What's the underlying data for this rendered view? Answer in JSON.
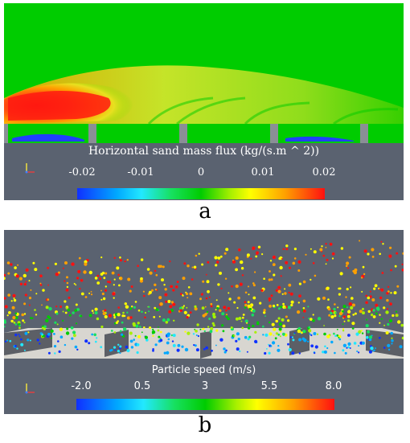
{
  "panel_a": {
    "label": "a",
    "colorbar_title": "Horizontal sand mass flux (kg/(s.m ^ 2))",
    "ticks": [
      "-0.02",
      "-0.01",
      "0",
      "0.01",
      "0.02"
    ],
    "colormap": [
      "#1030ff",
      "#00a8ff",
      "#22e8ff",
      "#17e060",
      "#00cc00",
      "#a8f000",
      "#ffff00",
      "#ffa000",
      "#ff1010"
    ]
  },
  "panel_b": {
    "label": "b",
    "colorbar_title": "Particle speed (m/s)",
    "ticks": [
      "-2.0",
      "0.5",
      "3",
      "5.5",
      "8.0"
    ],
    "colormap": [
      "#1030ff",
      "#00a8ff",
      "#22e8ff",
      "#17e060",
      "#00cc00",
      "#a8f000",
      "#ffff00",
      "#ffa000",
      "#ff1010"
    ]
  },
  "colors": {
    "background_field": "#00cc00",
    "viewport_gray": "#5a6270",
    "barrier_gray": "#8a8f96"
  }
}
